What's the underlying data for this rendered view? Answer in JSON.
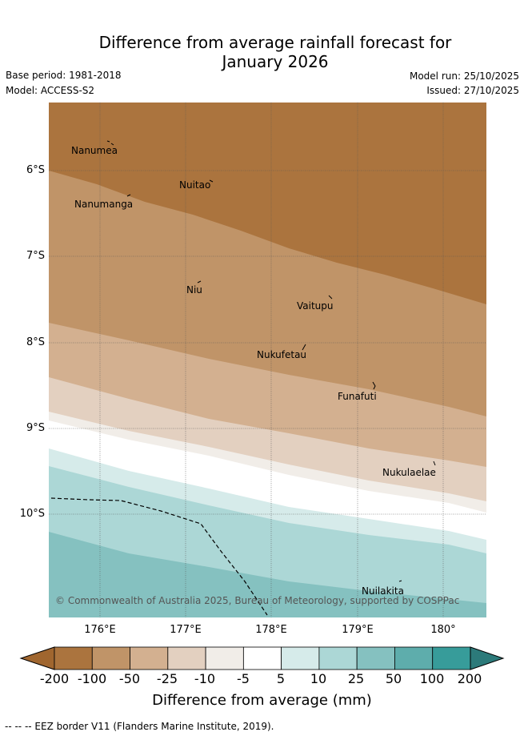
{
  "title": {
    "line1": "Difference from average rainfall forecast for",
    "line2": "January 2026"
  },
  "meta": {
    "base_period": "Base period: 1981-2018",
    "model": "Model: ACCESS-S2",
    "model_run": "Model run: 25/10/2025",
    "issued": "Issued: 27/10/2025"
  },
  "axes": {
    "lat_labels": [
      "6°S",
      "7°S",
      "8°S",
      "9°S",
      "10°S"
    ],
    "lon_labels": [
      "176°E",
      "177°E",
      "178°E",
      "179°E",
      "180°"
    ]
  },
  "places": {
    "nanumea": "Nanumea",
    "nuitao": "Nuitao",
    "nanumanga": "Nanumanga",
    "niu": "Niu",
    "vaitupu": "Vaitupu",
    "nukufetau": "Nukufetau",
    "funafuti": "Funafuti",
    "nukulaelae": "Nukulaelae",
    "nuilakita": "Nuilakita"
  },
  "copyright": "© Commonwealth of Australia 2025, Bureau of Meteorology, supported by COSPPac",
  "colorbar": {
    "ticks": [
      "-200",
      "-100",
      "-50",
      "-25",
      "-10",
      "-5",
      "5",
      "10",
      "25",
      "50",
      "100",
      "200"
    ],
    "label": "Difference from average (mm)",
    "under_color": "#a0662f",
    "over_color": "#2c7a7a",
    "colors": [
      "#ab743e",
      "#c09468",
      "#d3b090",
      "#e3d0c0",
      "#f1ede8",
      "#ffffff",
      "#d6ebea",
      "#acd7d6",
      "#85c1c0",
      "#5eadac",
      "#379c9a"
    ]
  },
  "footnote": "--  --  -- EEZ border V11 (Flanders Marine Institute, 2019).",
  "colors": {
    "brown_dark": "#ab743e",
    "brown_mid": "#c09468",
    "brown_light": "#d3b090",
    "tan": "#e3d0c0",
    "offwhite": "#f1ede8",
    "white": "#ffffff",
    "teal_pale": "#d6ebea",
    "teal_light": "#acd7d6",
    "teal_mid": "#85c1c0"
  }
}
